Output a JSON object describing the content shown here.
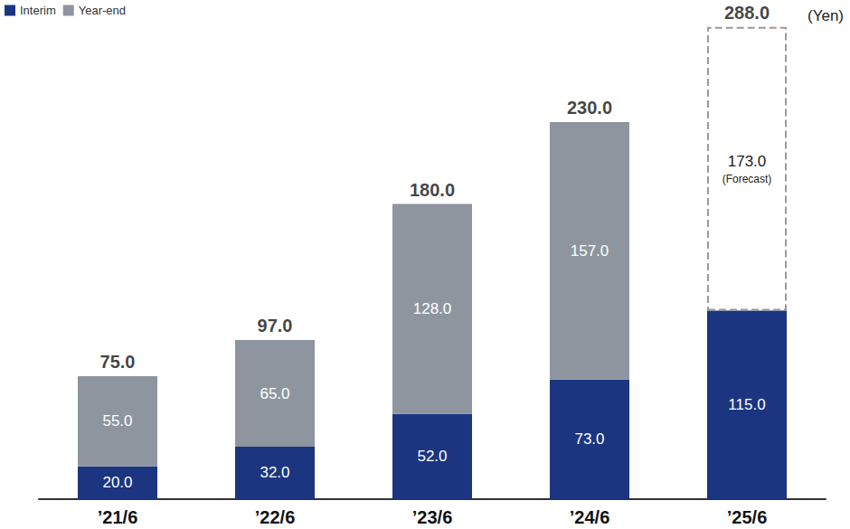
{
  "chart_data": {
    "type": "bar",
    "stacked": true,
    "data_labels": true,
    "tick_labels": "x",
    "grid": false,
    "legend": "top-left",
    "unit": "(Yen)",
    "categories": [
      "’21/6",
      "’22/6",
      "’23/6",
      "’24/6",
      "’25/6"
    ],
    "series": [
      {
        "name": "Interim",
        "color": "#1b3580",
        "values": [
          20,
          32,
          52,
          73,
          115
        ],
        "value_labels": [
          "20.0",
          "32.0",
          "52.0",
          "73.0",
          "115.0"
        ]
      },
      {
        "name": "Year-end",
        "color": "#8e959f",
        "values": [
          55,
          65,
          128,
          157,
          173
        ],
        "value_labels": [
          "55.0",
          "65.0",
          "128.0",
          "157.0",
          "173.0"
        ]
      }
    ],
    "totals": [
      75,
      97,
      180,
      230,
      288
    ],
    "total_labels": [
      "75.0",
      "97.0",
      "180.0",
      "230.0",
      "288.0"
    ],
    "annotations": [
      {
        "category": "’25/6",
        "series": "Year-end",
        "text": "(Forecast)"
      }
    ],
    "ylim": [
      0,
      300
    ],
    "yticks": [
      0,
      300
    ]
  }
}
